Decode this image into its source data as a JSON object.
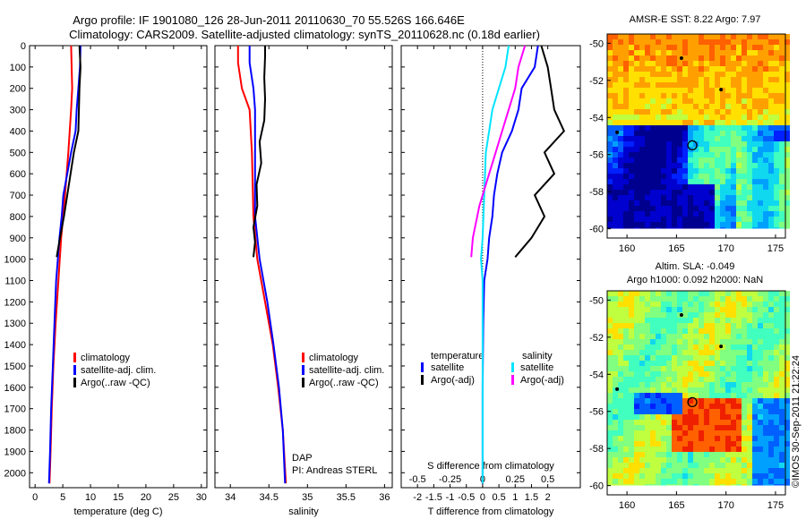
{
  "header": {
    "title_line1": "Argo profile: IF 1901080_126 28-Jun-2011 20110630_70 55.526S 166.646E",
    "title_line2": "Climatology: CARS2009. Satellite-adjusted climatology: synTS_20110628.nc (0.18d earlier)"
  },
  "colors": {
    "climatology": "#ff0000",
    "satellite": "#0000ff",
    "argo": "#000000",
    "s_satellite": "#00e5ff",
    "s_argo": "#ff00ff"
  },
  "chart_data": [
    {
      "type": "line",
      "name": "temperature-profile",
      "xlabel": "temperature (deg C)",
      "ylabel": "",
      "xlim": [
        -1,
        31
      ],
      "ylim": [
        2070,
        0
      ],
      "xticks": [
        "0",
        "5",
        "10",
        "15",
        "20",
        "25",
        "30"
      ],
      "yticks": [
        "0",
        "100",
        "200",
        "300",
        "400",
        "500",
        "600",
        "700",
        "800",
        "900",
        "1000",
        "1100",
        "1200",
        "1300",
        "1400",
        "1500",
        "1600",
        "1700",
        "1800",
        "1900",
        "2000"
      ],
      "legend": [
        "climatology",
        "satellite-adj. clim.",
        "Argo(..raw -QC)"
      ],
      "series": [
        {
          "name": "climatology",
          "color": "#ff0000",
          "points": [
            [
              6.5,
              0
            ],
            [
              6.6,
              100
            ],
            [
              6.7,
              200
            ],
            [
              6.5,
              300
            ],
            [
              6.0,
              500
            ],
            [
              5.4,
              700
            ],
            [
              4.7,
              900
            ],
            [
              4.2,
              1100
            ],
            [
              3.7,
              1300
            ],
            [
              3.3,
              1500
            ],
            [
              3.0,
              1700
            ],
            [
              2.8,
              1900
            ],
            [
              2.6,
              2050
            ]
          ]
        },
        {
          "name": "satellite-adj. clim.",
          "color": "#0000ff",
          "points": [
            [
              8.2,
              0
            ],
            [
              8.1,
              100
            ],
            [
              7.8,
              200
            ],
            [
              7.5,
              300
            ],
            [
              7.3,
              400
            ],
            [
              6.5,
              500
            ],
            [
              5.8,
              600
            ],
            [
              5.1,
              700
            ],
            [
              4.8,
              800
            ],
            [
              4.4,
              900
            ],
            [
              4.1,
              1000
            ],
            [
              3.8,
              1100
            ],
            [
              3.5,
              1300
            ],
            [
              3.2,
              1500
            ],
            [
              2.9,
              1700
            ],
            [
              2.7,
              1900
            ],
            [
              2.5,
              2050
            ]
          ]
        },
        {
          "name": "Argo(..raw -QC)",
          "color": "#000000",
          "points": [
            [
              8.0,
              0
            ],
            [
              8.2,
              100
            ],
            [
              8.0,
              200
            ],
            [
              7.9,
              300
            ],
            [
              7.8,
              400
            ],
            [
              7.0,
              500
            ],
            [
              6.4,
              600
            ],
            [
              5.8,
              700
            ],
            [
              5.2,
              800
            ],
            [
              4.5,
              900
            ],
            [
              3.9,
              990
            ]
          ]
        }
      ]
    },
    {
      "type": "line",
      "name": "salinity-profile",
      "xlabel": "salinity",
      "xlim": [
        33.8,
        36.1
      ],
      "ylim": [
        2070,
        0
      ],
      "xticks": [
        "34",
        "34.5",
        "35",
        "35.5",
        "36"
      ],
      "legend": [
        "climatology",
        "satellite-adj. clim.",
        "Argo(..raw -QC)"
      ],
      "annotation": [
        "DAP",
        "PI: Andreas STERL"
      ],
      "series": [
        {
          "name": "climatology",
          "color": "#ff0000",
          "points": [
            [
              34.1,
              0
            ],
            [
              34.1,
              80
            ],
            [
              34.15,
              200
            ],
            [
              34.25,
              300
            ],
            [
              34.28,
              500
            ],
            [
              34.3,
              800
            ],
            [
              34.35,
              1000
            ],
            [
              34.45,
              1200
            ],
            [
              34.55,
              1400
            ],
            [
              34.62,
              1600
            ],
            [
              34.68,
              1800
            ],
            [
              34.72,
              2050
            ]
          ]
        },
        {
          "name": "satellite-adj. clim.",
          "color": "#0000ff",
          "points": [
            [
              34.25,
              0
            ],
            [
              34.25,
              80
            ],
            [
              34.3,
              200
            ],
            [
              34.32,
              300
            ],
            [
              34.32,
              500
            ],
            [
              34.32,
              800
            ],
            [
              34.38,
              1000
            ],
            [
              34.48,
              1200
            ],
            [
              34.56,
              1400
            ],
            [
              34.63,
              1600
            ],
            [
              34.68,
              1800
            ],
            [
              34.71,
              2050
            ]
          ]
        },
        {
          "name": "Argo(..raw -QC)",
          "color": "#000000",
          "points": [
            [
              34.45,
              0
            ],
            [
              34.45,
              50
            ],
            [
              34.44,
              150
            ],
            [
              34.45,
              250
            ],
            [
              34.44,
              350
            ],
            [
              34.38,
              450
            ],
            [
              34.4,
              550
            ],
            [
              34.34,
              650
            ],
            [
              34.35,
              750
            ],
            [
              34.3,
              850
            ],
            [
              34.32,
              920
            ],
            [
              34.3,
              990
            ]
          ]
        }
      ]
    },
    {
      "type": "line",
      "name": "difference-profile",
      "xlabel": "T difference from climatology",
      "xlabel_top": "S difference from climatology",
      "xlim": [
        -2.5,
        3.0
      ],
      "ylim": [
        2070,
        0
      ],
      "xticks": [
        "-2",
        "-1.5",
        "-1",
        "-0.5",
        "0",
        "0.5",
        "1",
        "1.5",
        "2"
      ],
      "sticks": [
        "-0.5",
        "-0.25",
        "0",
        "0.25",
        "0.5"
      ],
      "legend_t": {
        "title": "temperature",
        "items": [
          "satellite",
          "Argo(-adj)"
        ]
      },
      "legend_s": {
        "title": "salinity",
        "items": [
          "satellite",
          "Argo(-adj)"
        ]
      },
      "series": [
        {
          "name": "T satellite",
          "color": "#0000ff",
          "points": [
            [
              1.7,
              0
            ],
            [
              1.6,
              100
            ],
            [
              1.2,
              200
            ],
            [
              1.1,
              300
            ],
            [
              0.9,
              400
            ],
            [
              0.6,
              500
            ],
            [
              0.45,
              600
            ],
            [
              0.35,
              700
            ],
            [
              0.3,
              800
            ],
            [
              0.2,
              900
            ],
            [
              0.15,
              1000
            ],
            [
              0.05,
              1100
            ],
            [
              0.02,
              1300
            ],
            [
              0.0,
              1600
            ],
            [
              0.0,
              2050
            ]
          ]
        },
        {
          "name": "T Argo(-adj)",
          "color": "#000000",
          "points": [
            [
              1.8,
              0
            ],
            [
              2.0,
              100
            ],
            [
              2.1,
              200
            ],
            [
              2.2,
              300
            ],
            [
              2.5,
              400
            ],
            [
              1.9,
              500
            ],
            [
              2.2,
              600
            ],
            [
              1.6,
              700
            ],
            [
              1.9,
              800
            ],
            [
              1.5,
              900
            ],
            [
              1.0,
              990
            ]
          ]
        },
        {
          "name": "S satellite",
          "color": "#00e5ff",
          "points": [
            [
              0.8,
              0
            ],
            [
              0.7,
              100
            ],
            [
              0.5,
              200
            ],
            [
              0.3,
              300
            ],
            [
              0.2,
              400
            ],
            [
              0.1,
              500
            ],
            [
              0.05,
              700
            ],
            [
              0.0,
              900
            ],
            [
              -0.05,
              1000
            ],
            [
              0.0,
              1100
            ],
            [
              0.0,
              1500
            ],
            [
              0.0,
              2050
            ]
          ]
        },
        {
          "name": "S Argo(-adj)",
          "color": "#ff00ff",
          "points": [
            [
              1.3,
              0
            ],
            [
              1.1,
              100
            ],
            [
              1.0,
              200
            ],
            [
              0.8,
              300
            ],
            [
              0.6,
              400
            ],
            [
              0.4,
              500
            ],
            [
              0.2,
              600
            ],
            [
              -0.1,
              750
            ],
            [
              -0.3,
              900
            ],
            [
              -0.35,
              990
            ]
          ]
        }
      ]
    },
    {
      "type": "heatmap",
      "name": "sst-map",
      "title": "AMSR-E SST: 8.22 Argo: 7.97",
      "xlim": [
        158,
        176
      ],
      "ylim": [
        -60.5,
        -49.5
      ],
      "xticks": [
        "160",
        "165",
        "170",
        "175"
      ],
      "yticks": [
        "-50",
        "-52",
        "-54",
        "-56",
        "-58",
        "-60"
      ],
      "marker": [
        166.6,
        -55.5
      ]
    },
    {
      "type": "heatmap",
      "name": "sla-map",
      "title_line1": "Altim. SLA: -0.049",
      "title_line2": "Argo h1000: 0.092 h2000: NaN",
      "xlim": [
        158,
        176
      ],
      "ylim": [
        -60.5,
        -49.5
      ],
      "xticks": [
        "160",
        "165",
        "170",
        "175"
      ],
      "yticks": [
        "-50",
        "-52",
        "-54",
        "-56",
        "-58",
        "-60"
      ],
      "marker": [
        166.6,
        -55.5
      ]
    }
  ],
  "footer": {
    "stamp": "©IMOS 30-Sep-2011 21:22:24"
  }
}
